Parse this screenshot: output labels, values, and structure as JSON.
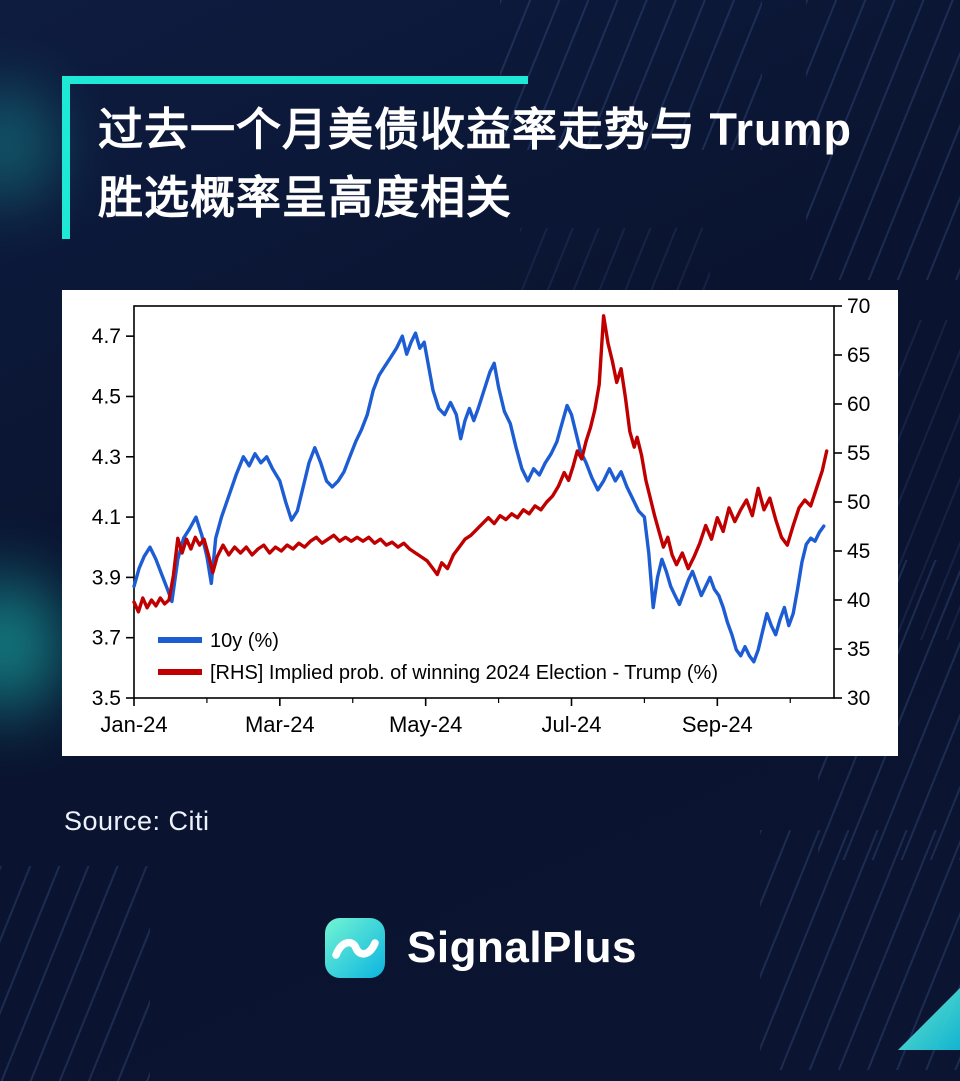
{
  "header": {
    "title_line1": "过去一个月美债收益率走势与 Trump",
    "title_line2": "胜选概率呈高度相关"
  },
  "footer": {
    "source": "Source: Citi",
    "brand": "SignalPlus"
  },
  "colors": {
    "accent": "#1de9d6",
    "background": "#0a1430",
    "series_blue": "#1d5dd4",
    "series_red": "#c00000"
  },
  "chart_data": {
    "type": "line",
    "title": "",
    "grid": false,
    "legend_position": "bottom-left-inside",
    "x_axis": {
      "min": 0,
      "max": 9.6,
      "unit": "months since Jan-2024",
      "major_ticks": [
        {
          "pos": 0,
          "label": "Jan-24"
        },
        {
          "pos": 2,
          "label": "Mar-24"
        },
        {
          "pos": 4,
          "label": "May-24"
        },
        {
          "pos": 6,
          "label": "Jul-24"
        },
        {
          "pos": 8,
          "label": "Sep-24"
        }
      ],
      "minor_tick_positions": [
        1,
        3,
        5,
        7,
        9
      ]
    },
    "left_axis": {
      "min": 3.5,
      "max": 4.8,
      "ticks": [
        3.5,
        3.7,
        3.9,
        4.1,
        4.3,
        4.5,
        4.7
      ]
    },
    "right_axis": {
      "min": 30,
      "max": 70,
      "ticks": [
        30,
        35,
        40,
        45,
        50,
        55,
        60,
        65,
        70
      ]
    },
    "series": [
      {
        "name": "10y (%)",
        "axis": "left",
        "color": "#1d5dd4",
        "points": [
          [
            0.0,
            3.87
          ],
          [
            0.07,
            3.93
          ],
          [
            0.14,
            3.97
          ],
          [
            0.22,
            4.0
          ],
          [
            0.3,
            3.96
          ],
          [
            0.38,
            3.91
          ],
          [
            0.46,
            3.86
          ],
          [
            0.52,
            3.82
          ],
          [
            0.6,
            3.96
          ],
          [
            0.68,
            4.03
          ],
          [
            0.76,
            4.06
          ],
          [
            0.85,
            4.1
          ],
          [
            0.93,
            4.04
          ],
          [
            1.0,
            3.97
          ],
          [
            1.06,
            3.88
          ],
          [
            1.12,
            4.03
          ],
          [
            1.2,
            4.1
          ],
          [
            1.3,
            4.17
          ],
          [
            1.4,
            4.24
          ],
          [
            1.5,
            4.3
          ],
          [
            1.58,
            4.27
          ],
          [
            1.66,
            4.31
          ],
          [
            1.74,
            4.28
          ],
          [
            1.82,
            4.3
          ],
          [
            1.9,
            4.26
          ],
          [
            2.0,
            4.22
          ],
          [
            2.08,
            4.15
          ],
          [
            2.16,
            4.09
          ],
          [
            2.24,
            4.12
          ],
          [
            2.32,
            4.2
          ],
          [
            2.4,
            4.28
          ],
          [
            2.48,
            4.33
          ],
          [
            2.56,
            4.28
          ],
          [
            2.64,
            4.22
          ],
          [
            2.72,
            4.2
          ],
          [
            2.8,
            4.22
          ],
          [
            2.88,
            4.25
          ],
          [
            2.96,
            4.3
          ],
          [
            3.04,
            4.35
          ],
          [
            3.12,
            4.39
          ],
          [
            3.2,
            4.44
          ],
          [
            3.28,
            4.52
          ],
          [
            3.36,
            4.57
          ],
          [
            3.44,
            4.6
          ],
          [
            3.52,
            4.63
          ],
          [
            3.6,
            4.66
          ],
          [
            3.68,
            4.7
          ],
          [
            3.74,
            4.64
          ],
          [
            3.8,
            4.68
          ],
          [
            3.86,
            4.71
          ],
          [
            3.92,
            4.66
          ],
          [
            3.98,
            4.68
          ],
          [
            4.04,
            4.6
          ],
          [
            4.1,
            4.52
          ],
          [
            4.18,
            4.46
          ],
          [
            4.26,
            4.44
          ],
          [
            4.34,
            4.48
          ],
          [
            4.42,
            4.44
          ],
          [
            4.48,
            4.36
          ],
          [
            4.54,
            4.42
          ],
          [
            4.6,
            4.46
          ],
          [
            4.66,
            4.42
          ],
          [
            4.72,
            4.46
          ],
          [
            4.8,
            4.52
          ],
          [
            4.88,
            4.58
          ],
          [
            4.94,
            4.61
          ],
          [
            5.0,
            4.53
          ],
          [
            5.08,
            4.45
          ],
          [
            5.16,
            4.41
          ],
          [
            5.24,
            4.33
          ],
          [
            5.32,
            4.26
          ],
          [
            5.4,
            4.22
          ],
          [
            5.48,
            4.26
          ],
          [
            5.56,
            4.24
          ],
          [
            5.64,
            4.28
          ],
          [
            5.72,
            4.31
          ],
          [
            5.8,
            4.35
          ],
          [
            5.88,
            4.42
          ],
          [
            5.94,
            4.47
          ],
          [
            6.0,
            4.44
          ],
          [
            6.06,
            4.38
          ],
          [
            6.12,
            4.32
          ],
          [
            6.2,
            4.28
          ],
          [
            6.28,
            4.23
          ],
          [
            6.36,
            4.19
          ],
          [
            6.44,
            4.22
          ],
          [
            6.52,
            4.26
          ],
          [
            6.6,
            4.22
          ],
          [
            6.68,
            4.25
          ],
          [
            6.76,
            4.2
          ],
          [
            6.84,
            4.16
          ],
          [
            6.92,
            4.12
          ],
          [
            7.0,
            4.1
          ],
          [
            7.06,
            3.98
          ],
          [
            7.12,
            3.8
          ],
          [
            7.18,
            3.9
          ],
          [
            7.24,
            3.96
          ],
          [
            7.3,
            3.92
          ],
          [
            7.36,
            3.87
          ],
          [
            7.42,
            3.84
          ],
          [
            7.48,
            3.81
          ],
          [
            7.54,
            3.85
          ],
          [
            7.6,
            3.89
          ],
          [
            7.66,
            3.92
          ],
          [
            7.72,
            3.88
          ],
          [
            7.78,
            3.84
          ],
          [
            7.84,
            3.87
          ],
          [
            7.9,
            3.9
          ],
          [
            7.96,
            3.86
          ],
          [
            8.02,
            3.84
          ],
          [
            8.08,
            3.8
          ],
          [
            8.14,
            3.75
          ],
          [
            8.2,
            3.71
          ],
          [
            8.26,
            3.66
          ],
          [
            8.32,
            3.64
          ],
          [
            8.38,
            3.67
          ],
          [
            8.44,
            3.64
          ],
          [
            8.5,
            3.62
          ],
          [
            8.56,
            3.66
          ],
          [
            8.62,
            3.72
          ],
          [
            8.68,
            3.78
          ],
          [
            8.74,
            3.74
          ],
          [
            8.8,
            3.71
          ],
          [
            8.86,
            3.76
          ],
          [
            8.92,
            3.8
          ],
          [
            8.98,
            3.74
          ],
          [
            9.04,
            3.78
          ],
          [
            9.1,
            3.86
          ],
          [
            9.16,
            3.95
          ],
          [
            9.22,
            4.01
          ],
          [
            9.28,
            4.03
          ],
          [
            9.34,
            4.02
          ],
          [
            9.4,
            4.05
          ],
          [
            9.46,
            4.07
          ]
        ]
      },
      {
        "name": "[RHS] Implied prob. of winning 2024 Election - Trump (%)",
        "axis": "right",
        "color": "#c00000",
        "points": [
          [
            0.0,
            39.8
          ],
          [
            0.06,
            38.8
          ],
          [
            0.12,
            40.2
          ],
          [
            0.18,
            39.2
          ],
          [
            0.24,
            40.0
          ],
          [
            0.3,
            39.4
          ],
          [
            0.36,
            40.2
          ],
          [
            0.42,
            39.6
          ],
          [
            0.48,
            40.0
          ],
          [
            0.54,
            42.5
          ],
          [
            0.6,
            46.3
          ],
          [
            0.66,
            44.8
          ],
          [
            0.72,
            46.2
          ],
          [
            0.78,
            45.2
          ],
          [
            0.84,
            46.4
          ],
          [
            0.9,
            45.6
          ],
          [
            0.96,
            46.2
          ],
          [
            1.02,
            44.6
          ],
          [
            1.08,
            42.8
          ],
          [
            1.14,
            44.4
          ],
          [
            1.22,
            45.6
          ],
          [
            1.3,
            44.6
          ],
          [
            1.38,
            45.4
          ],
          [
            1.46,
            44.8
          ],
          [
            1.54,
            45.4
          ],
          [
            1.62,
            44.6
          ],
          [
            1.7,
            45.2
          ],
          [
            1.78,
            45.6
          ],
          [
            1.86,
            44.8
          ],
          [
            1.94,
            45.4
          ],
          [
            2.02,
            45.0
          ],
          [
            2.1,
            45.6
          ],
          [
            2.18,
            45.2
          ],
          [
            2.26,
            45.8
          ],
          [
            2.34,
            45.4
          ],
          [
            2.42,
            46.0
          ],
          [
            2.5,
            46.4
          ],
          [
            2.58,
            45.8
          ],
          [
            2.66,
            46.2
          ],
          [
            2.74,
            46.6
          ],
          [
            2.82,
            46.0
          ],
          [
            2.9,
            46.4
          ],
          [
            2.98,
            46.0
          ],
          [
            3.06,
            46.4
          ],
          [
            3.14,
            46.0
          ],
          [
            3.22,
            46.4
          ],
          [
            3.3,
            45.8
          ],
          [
            3.38,
            46.2
          ],
          [
            3.46,
            45.6
          ],
          [
            3.54,
            45.9
          ],
          [
            3.62,
            45.4
          ],
          [
            3.7,
            45.8
          ],
          [
            3.78,
            45.2
          ],
          [
            3.86,
            44.8
          ],
          [
            3.94,
            44.4
          ],
          [
            4.02,
            44.0
          ],
          [
            4.1,
            43.2
          ],
          [
            4.16,
            42.6
          ],
          [
            4.22,
            43.8
          ],
          [
            4.3,
            43.2
          ],
          [
            4.38,
            44.6
          ],
          [
            4.46,
            45.4
          ],
          [
            4.54,
            46.2
          ],
          [
            4.62,
            46.6
          ],
          [
            4.7,
            47.2
          ],
          [
            4.78,
            47.8
          ],
          [
            4.86,
            48.4
          ],
          [
            4.94,
            47.8
          ],
          [
            5.02,
            48.6
          ],
          [
            5.1,
            48.2
          ],
          [
            5.18,
            48.8
          ],
          [
            5.26,
            48.4
          ],
          [
            5.34,
            49.2
          ],
          [
            5.42,
            48.8
          ],
          [
            5.5,
            49.6
          ],
          [
            5.58,
            49.2
          ],
          [
            5.66,
            50.0
          ],
          [
            5.74,
            50.6
          ],
          [
            5.82,
            51.6
          ],
          [
            5.9,
            53.0
          ],
          [
            5.96,
            52.2
          ],
          [
            6.02,
            53.6
          ],
          [
            6.08,
            55.2
          ],
          [
            6.14,
            54.4
          ],
          [
            6.2,
            56.2
          ],
          [
            6.26,
            57.6
          ],
          [
            6.32,
            59.4
          ],
          [
            6.38,
            62.0
          ],
          [
            6.44,
            69.0
          ],
          [
            6.5,
            66.2
          ],
          [
            6.56,
            64.4
          ],
          [
            6.62,
            62.2
          ],
          [
            6.68,
            63.6
          ],
          [
            6.74,
            60.6
          ],
          [
            6.8,
            57.2
          ],
          [
            6.86,
            55.6
          ],
          [
            6.9,
            56.6
          ],
          [
            6.96,
            54.8
          ],
          [
            7.02,
            52.2
          ],
          [
            7.08,
            50.4
          ],
          [
            7.14,
            48.6
          ],
          [
            7.2,
            47.0
          ],
          [
            7.26,
            45.4
          ],
          [
            7.32,
            46.4
          ],
          [
            7.38,
            44.6
          ],
          [
            7.44,
            43.6
          ],
          [
            7.52,
            44.8
          ],
          [
            7.6,
            43.2
          ],
          [
            7.68,
            44.4
          ],
          [
            7.76,
            45.8
          ],
          [
            7.84,
            47.6
          ],
          [
            7.92,
            46.2
          ],
          [
            8.0,
            48.4
          ],
          [
            8.08,
            47.0
          ],
          [
            8.16,
            49.4
          ],
          [
            8.24,
            48.0
          ],
          [
            8.32,
            49.2
          ],
          [
            8.4,
            50.2
          ],
          [
            8.48,
            48.6
          ],
          [
            8.56,
            51.4
          ],
          [
            8.64,
            49.2
          ],
          [
            8.72,
            50.4
          ],
          [
            8.8,
            48.2
          ],
          [
            8.88,
            46.4
          ],
          [
            8.96,
            45.6
          ],
          [
            9.04,
            47.6
          ],
          [
            9.12,
            49.4
          ],
          [
            9.2,
            50.2
          ],
          [
            9.28,
            49.6
          ],
          [
            9.36,
            51.4
          ],
          [
            9.44,
            53.2
          ],
          [
            9.5,
            55.2
          ]
        ]
      }
    ]
  }
}
